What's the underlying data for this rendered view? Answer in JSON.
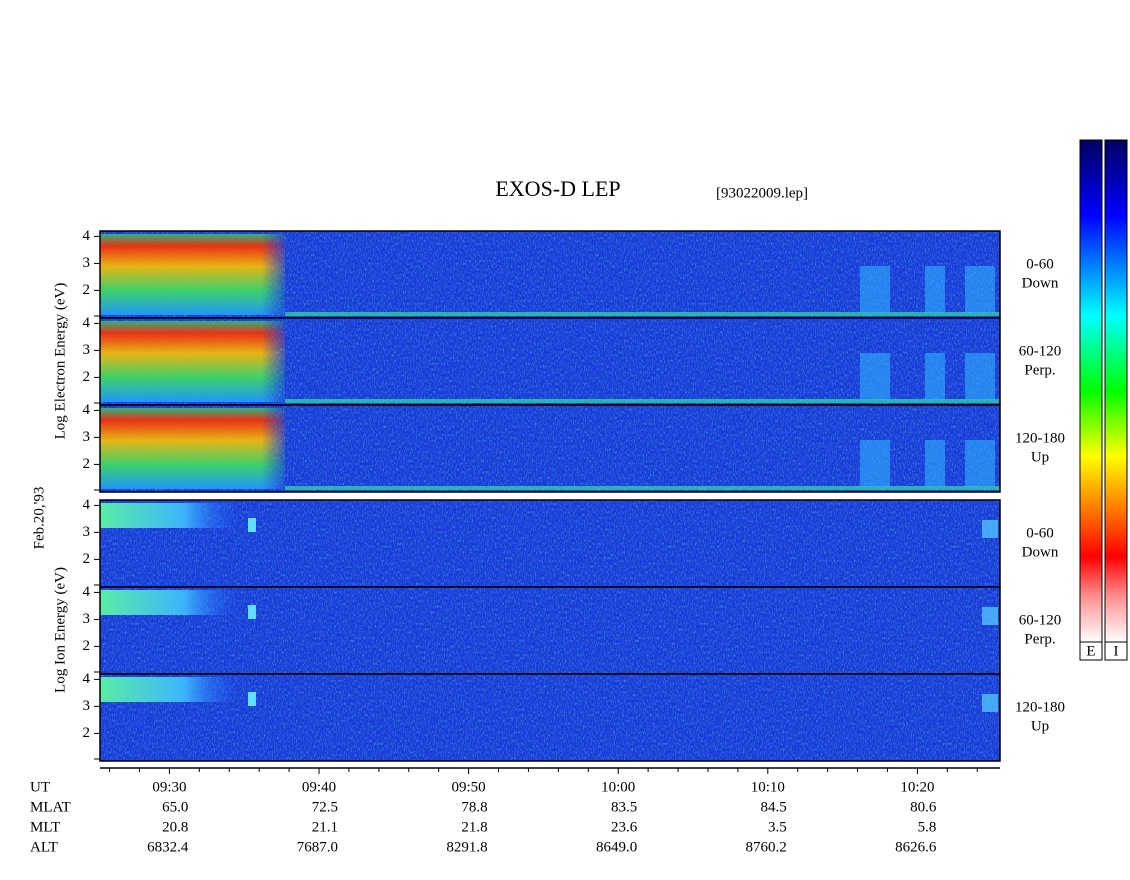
{
  "header": {
    "title": "EXOS-D LEP",
    "file": "[93022009.lep]"
  },
  "date": "Feb.20,'93",
  "electron": {
    "axis_label": "Log Electron Energy (eV)",
    "panels": [
      {
        "range": "0-60",
        "direction": "Down"
      },
      {
        "range": "60-120",
        "direction": "Perp."
      },
      {
        "range": "120-180",
        "direction": "Up"
      }
    ]
  },
  "ion": {
    "axis_label": "Log Ion Energy (eV)",
    "panels": [
      {
        "range": "0-60",
        "direction": "Down"
      },
      {
        "range": "60-120",
        "direction": "Perp."
      },
      {
        "range": "120-180",
        "direction": "Up"
      }
    ]
  },
  "yticks": [
    2,
    3,
    4
  ],
  "time_ticks": [
    "09:30",
    "09:40",
    "09:50",
    "10:00",
    "10:10",
    "10:20"
  ],
  "orbit": {
    "ut_label": "UT",
    "rows": [
      {
        "label": "MLAT",
        "values": [
          "65.0",
          "72.5",
          "78.8",
          "83.5",
          "84.5",
          "80.6"
        ]
      },
      {
        "label": "MLT",
        "values": [
          "20.8",
          "21.1",
          "21.8",
          "23.6",
          "3.5",
          "5.8"
        ]
      },
      {
        "label": "ALT",
        "values": [
          "6832.4",
          "7687.0",
          "8291.8",
          "8649.0",
          "8760.2",
          "8626.6"
        ]
      }
    ]
  },
  "colorbars": [
    "E",
    "I"
  ]
}
